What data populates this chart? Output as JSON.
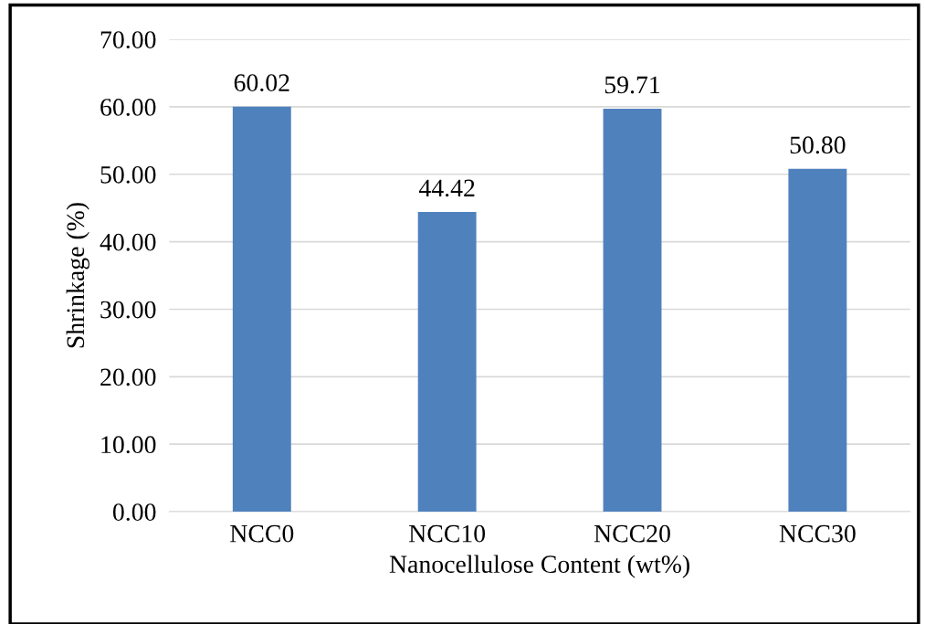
{
  "chart_data": {
    "type": "bar",
    "xlabel": "Nanocellulose Content (wt%)",
    "ylabel": "Shrinkage (%)",
    "categories": [
      "NCC0",
      "NCC10",
      "NCC20",
      "NCC30"
    ],
    "values": [
      60.02,
      44.42,
      59.71,
      50.8
    ],
    "color": "#4f81bd",
    "value_labels": [
      "60.02",
      "44.42",
      "59.71",
      "50.80"
    ],
    "ylim": [
      0,
      70
    ],
    "yticks": [
      {
        "value": 0,
        "label": "0.00"
      },
      {
        "value": 10,
        "label": "10.00"
      },
      {
        "value": 20,
        "label": "20.00"
      },
      {
        "value": 30,
        "label": "30.00"
      },
      {
        "value": 40,
        "label": "40.00"
      },
      {
        "value": 50,
        "label": "50.00"
      },
      {
        "value": 60,
        "label": "60.00"
      },
      {
        "value": 70,
        "label": "70.00"
      }
    ],
    "grid": "y"
  }
}
